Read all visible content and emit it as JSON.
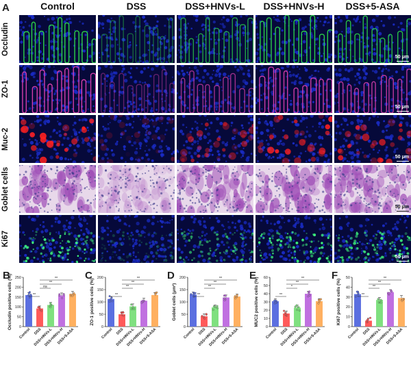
{
  "panel_a": {
    "letter": "A",
    "columns": [
      "Control",
      "DSS",
      "DSS+HNVs-L",
      "DSS+HNVs-H",
      "DSS+5-ASA"
    ],
    "rows": [
      {
        "label": "Occludin",
        "stain": "green"
      },
      {
        "label": "ZO-1",
        "stain": "pink"
      },
      {
        "label": "Muc-2",
        "stain": "red"
      },
      {
        "label": "Goblet cells",
        "stain": "pas"
      },
      {
        "label": "Ki67",
        "stain": "ki67"
      }
    ],
    "scale_bar": "50 μm",
    "colors": {
      "nuclei": "#1a2cc8",
      "occludin": "#2ee04a",
      "zo1": "#e040b0",
      "muc2": "#ff2020",
      "pas": "#a050b8",
      "ki67": "#40ff80"
    }
  },
  "chart_data": [
    {
      "letter": "B",
      "type": "bar",
      "ylabel": "Occludin positive cells (%)",
      "categories": [
        "Control",
        "DSS",
        "DSS+HNVs-L",
        "DSS+HNVs-H",
        "DSS+5-ASA"
      ],
      "values": [
        160,
        92,
        110,
        158,
        166
      ],
      "ylim": [
        0,
        250
      ],
      "yticks": [
        0,
        50,
        100,
        150,
        200,
        250
      ],
      "colors": [
        "#5b6fe0",
        "#ff5a5a",
        "#7fe07f",
        "#c070e0",
        "#ffb060"
      ],
      "significance": [
        {
          "from": 0,
          "to": 1,
          "label": "**"
        },
        {
          "from": 1,
          "to": 2,
          "label": "ns"
        },
        {
          "from": 1,
          "to": 3,
          "label": "**"
        },
        {
          "from": 1,
          "to": 4,
          "label": "**"
        }
      ]
    },
    {
      "letter": "C",
      "type": "bar",
      "ylabel": "ZO-1 positive cells (%)",
      "categories": [
        "Control",
        "DSS",
        "DSS+HNVs-L",
        "DSS+HNVs-H",
        "DSS+5-ASA"
      ],
      "values": [
        112,
        50,
        82,
        105,
        128
      ],
      "ylim": [
        0,
        200
      ],
      "yticks": [
        0,
        50,
        100,
        150,
        200
      ],
      "colors": [
        "#5b6fe0",
        "#ff5a5a",
        "#7fe07f",
        "#c070e0",
        "#ffb060"
      ],
      "significance": [
        {
          "from": 0,
          "to": 1,
          "label": "**"
        },
        {
          "from": 1,
          "to": 2,
          "label": "**"
        },
        {
          "from": 1,
          "to": 3,
          "label": "**"
        },
        {
          "from": 1,
          "to": 4,
          "label": "**"
        }
      ]
    },
    {
      "letter": "D",
      "type": "bar",
      "ylabel": "Goblet cells (μm²)",
      "categories": [
        "Control",
        "DSS",
        "DSS+HNVs-L",
        "DSS+HNVs-H",
        "DSS+5-ASA"
      ],
      "values": [
        130,
        42,
        78,
        118,
        122
      ],
      "ylim": [
        0,
        200
      ],
      "yticks": [
        0,
        50,
        100,
        150,
        200
      ],
      "colors": [
        "#5b6fe0",
        "#ff5a5a",
        "#7fe07f",
        "#c070e0",
        "#ffb060"
      ],
      "significance": [
        {
          "from": 0,
          "to": 1,
          "label": "**"
        },
        {
          "from": 1,
          "to": 2,
          "label": "**"
        },
        {
          "from": 1,
          "to": 3,
          "label": "**"
        },
        {
          "from": 1,
          "to": 4,
          "label": "**"
        }
      ]
    },
    {
      "letter": "E",
      "type": "bar",
      "ylabel": "MUC2 positive cells (%)",
      "categories": [
        "Control",
        "DSS",
        "DSS+HNVs-L",
        "DSS+HNVs-H",
        "DSS+5-ASA"
      ],
      "values": [
        31,
        16,
        23,
        40,
        31
      ],
      "ylim": [
        0,
        60
      ],
      "yticks": [
        0,
        10,
        20,
        30,
        40,
        50,
        60
      ],
      "colors": [
        "#5b6fe0",
        "#ff5a5a",
        "#7fe07f",
        "#c070e0",
        "#ffb060"
      ],
      "significance": [
        {
          "from": 0,
          "to": 1,
          "label": "**"
        },
        {
          "from": 1,
          "to": 2,
          "label": "*"
        },
        {
          "from": 1,
          "to": 3,
          "label": "**"
        },
        {
          "from": 1,
          "to": 4,
          "label": "**"
        }
      ]
    },
    {
      "letter": "F",
      "type": "bar",
      "ylabel": "Ki67 positive cells (%)",
      "categories": [
        "Control",
        "DSS",
        "DSS+HNVs-L",
        "DSS+HNVs-H",
        "DSS+5-ASA"
      ],
      "values": [
        33,
        6,
        27,
        35,
        29
      ],
      "ylim": [
        0,
        50
      ],
      "yticks": [
        0,
        10,
        20,
        30,
        40,
        50
      ],
      "colors": [
        "#5b6fe0",
        "#ff5a5a",
        "#7fe07f",
        "#c070e0",
        "#ffb060"
      ],
      "significance": [
        {
          "from": 0,
          "to": 1,
          "label": "**"
        },
        {
          "from": 1,
          "to": 2,
          "label": "**"
        },
        {
          "from": 1,
          "to": 3,
          "label": "**"
        },
        {
          "from": 1,
          "to": 4,
          "label": "**"
        }
      ]
    }
  ]
}
